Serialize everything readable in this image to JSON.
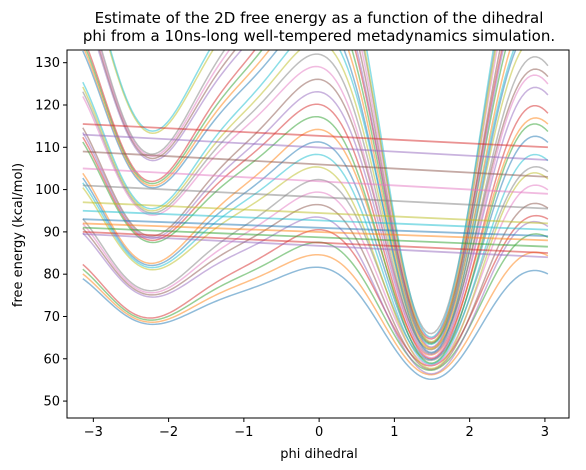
{
  "chart_data": {
    "type": "line",
    "title": "Estimate of the 2D free energy as a function of the dihedral\nphi from a 10ns-long well-tempered metadynamics simulation.",
    "xlabel": "phi dihedral",
    "ylabel": "free energy (kcal/mol)",
    "xlim": [
      -3.35,
      3.32
    ],
    "ylim": [
      46,
      133
    ],
    "xticks": [
      -3,
      -2,
      -1,
      0,
      1,
      2,
      3
    ],
    "yticks": [
      50,
      60,
      70,
      80,
      90,
      100,
      110,
      120,
      130
    ],
    "grid": false,
    "legend": "none",
    "line_alpha": 0.5,
    "curve_model": "f(phi) = offset + amp*(0.5*cos(phi+1.3)+0.9*cos(2*phi+0.4)+0.35*sin(3*phi)) + tilt*phi",
    "curves": [
      {
        "offset": 72,
        "amp": 10,
        "tilt": 0.0
      },
      {
        "offset": 74,
        "amp": 11,
        "tilt": 0.5
      },
      {
        "offset": 76,
        "amp": 12,
        "tilt": 1.0
      },
      {
        "offset": 78,
        "amp": 13,
        "tilt": 1.5
      },
      {
        "offset": 80,
        "amp": 14,
        "tilt": 0.0
      },
      {
        "offset": 82,
        "amp": 15,
        "tilt": 0.5
      },
      {
        "offset": 84,
        "amp": 16,
        "tilt": 1.0
      },
      {
        "offset": 86,
        "amp": 17,
        "tilt": 1.5
      },
      {
        "offset": 88,
        "amp": 18,
        "tilt": 0.0
      },
      {
        "offset": 90,
        "amp": 19,
        "tilt": 0.5
      },
      {
        "offset": 92,
        "amp": 20,
        "tilt": 1.0
      },
      {
        "offset": 94,
        "amp": 21,
        "tilt": 1.5
      },
      {
        "offset": 96,
        "amp": 22,
        "tilt": 0.0
      },
      {
        "offset": 98,
        "amp": 23,
        "tilt": 0.5
      },
      {
        "offset": 100,
        "amp": 24,
        "tilt": 1.0
      },
      {
        "offset": 102,
        "amp": 25,
        "tilt": 1.5
      },
      {
        "offset": 104,
        "amp": 26,
        "tilt": 0.0
      },
      {
        "offset": 106,
        "amp": 27,
        "tilt": 0.5
      },
      {
        "offset": 108,
        "amp": 28,
        "tilt": 1.0
      },
      {
        "offset": 110,
        "amp": 29,
        "tilt": 1.5
      },
      {
        "offset": 112,
        "amp": 30,
        "tilt": 0.0
      },
      {
        "offset": 114,
        "amp": 31,
        "tilt": 0.5
      },
      {
        "offset": 116,
        "amp": 32,
        "tilt": 1.0
      },
      {
        "offset": 118,
        "amp": 33,
        "tilt": 1.5
      },
      {
        "offset": 120,
        "amp": 34,
        "tilt": 0.0
      },
      {
        "offset": 122,
        "amp": 35,
        "tilt": 0.5
      },
      {
        "offset": 124,
        "amp": 36,
        "tilt": 1.0
      },
      {
        "offset": 126,
        "amp": 37,
        "tilt": 1.5
      },
      {
        "offset": 128,
        "amp": 38,
        "tilt": 0.0
      },
      {
        "offset": 130,
        "amp": 39,
        "tilt": 0.5
      }
    ],
    "straight_lines": [
      {
        "y_start": 115.5,
        "y_end": 110.0
      },
      {
        "y_start": 113.0,
        "y_end": 107.0
      },
      {
        "y_start": 109.0,
        "y_end": 103.0
      },
      {
        "y_start": 105.0,
        "y_end": 99.0
      },
      {
        "y_start": 101.0,
        "y_end": 95.5
      },
      {
        "y_start": 97.0,
        "y_end": 92.0
      },
      {
        "y_start": 95.0,
        "y_end": 90.5
      },
      {
        "y_start": 93.0,
        "y_end": 89.0
      },
      {
        "y_start": 92.0,
        "y_end": 88.0
      },
      {
        "y_start": 91.0,
        "y_end": 86.5
      },
      {
        "y_start": 90.0,
        "y_end": 85.0
      },
      {
        "y_start": 89.5,
        "y_end": 84.0
      }
    ],
    "colors": [
      "#1f77b4",
      "#ff7f0e",
      "#2ca02c",
      "#d62728",
      "#9467bd",
      "#8c564b",
      "#e377c2",
      "#7f7f7f",
      "#bcbd22",
      "#17becf"
    ]
  }
}
